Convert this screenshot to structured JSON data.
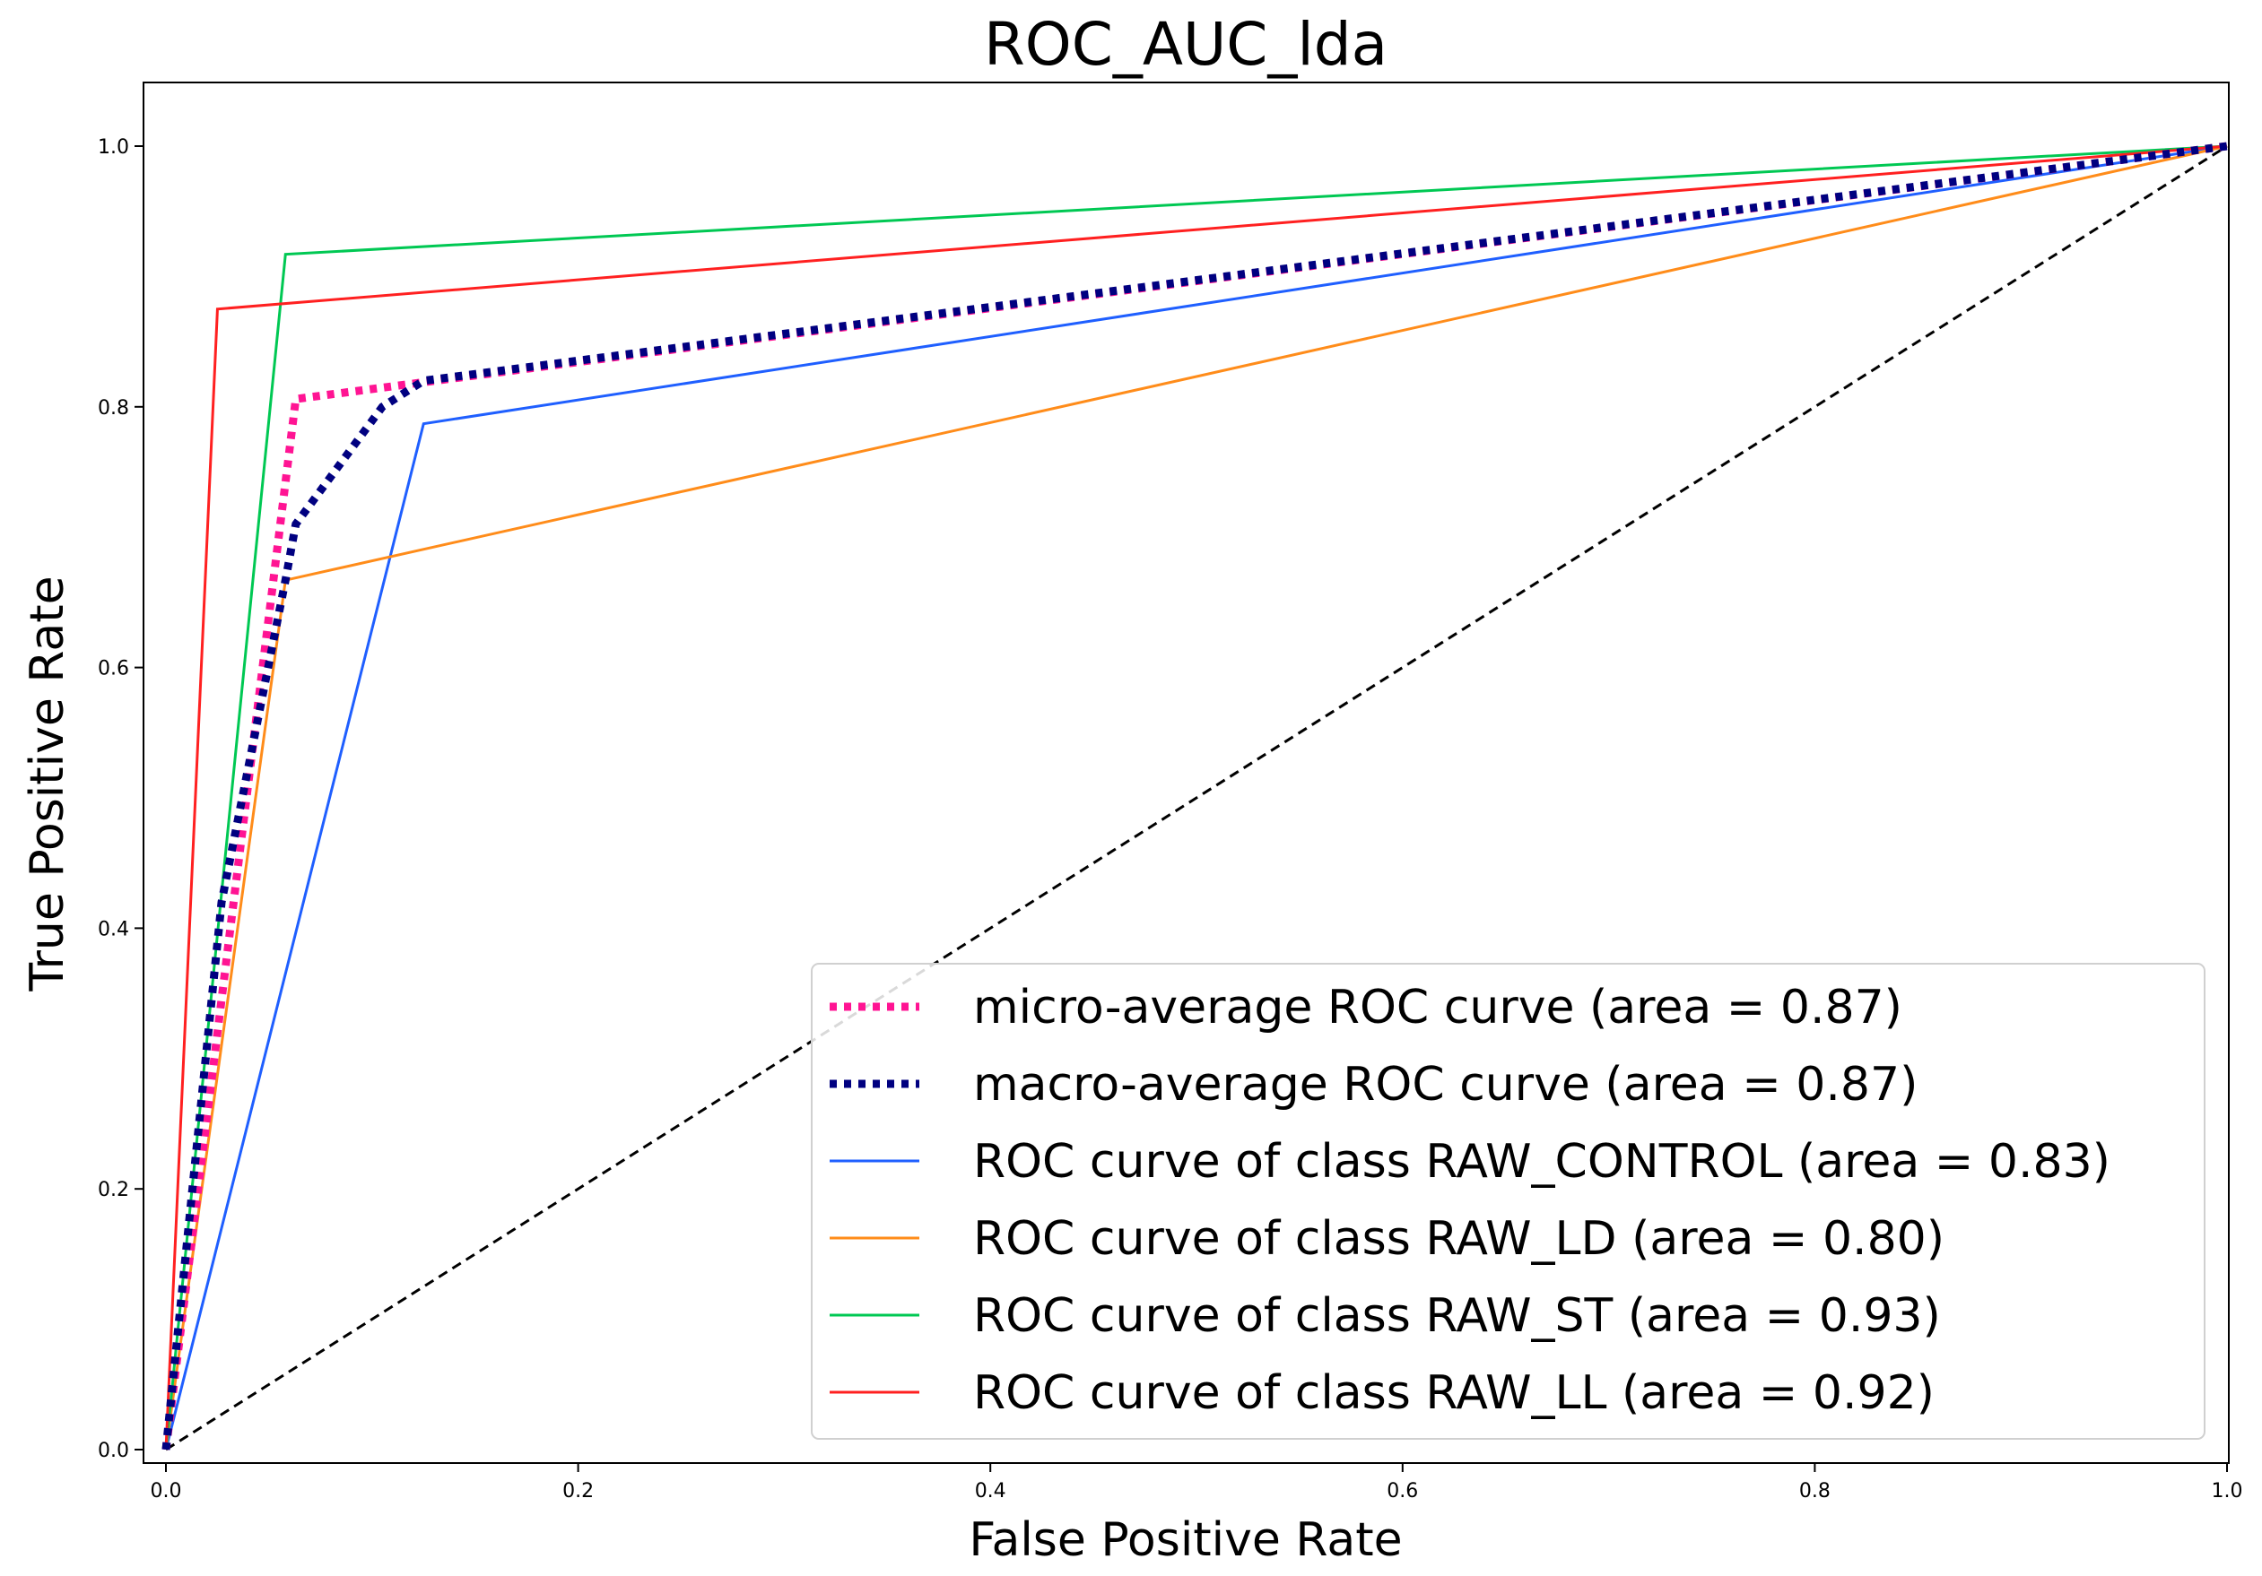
{
  "chart_data": {
    "type": "line",
    "title": "ROC_AUC_lda",
    "xlabel": "False Positive Rate",
    "ylabel": "True Positive Rate",
    "xlim": [
      0.0,
      1.0
    ],
    "ylim": [
      0.0,
      1.05
    ],
    "xticks": [
      0.0,
      0.2,
      0.4,
      0.6,
      0.8,
      1.0
    ],
    "xtick_labels": [
      "0.0",
      "0.2",
      "0.4",
      "0.6",
      "0.8",
      "1.0"
    ],
    "yticks": [
      0.0,
      0.2,
      0.4,
      0.6,
      0.8,
      1.0
    ],
    "ytick_labels": [
      "0.0",
      "0.2",
      "0.4",
      "0.6",
      "0.8",
      "1.0"
    ],
    "grid": false,
    "legend_position": "lower-right",
    "series": [
      {
        "name": "micro-average ROC curve (area = 0.87)",
        "color": "#ff1493",
        "style": "dotted",
        "x": [
          0.0,
          0.063,
          1.0
        ],
        "y": [
          0.0,
          0.806,
          1.0
        ]
      },
      {
        "name": "macro-average ROC curve (area = 0.87)",
        "color": "#000080",
        "style": "dotted",
        "x": [
          0.0,
          0.027,
          0.058,
          0.063,
          0.105,
          0.125,
          1.0
        ],
        "y": [
          0.0,
          0.42,
          0.667,
          0.71,
          0.8,
          0.82,
          1.0
        ]
      },
      {
        "name": "ROC curve of class RAW_CONTROL (area = 0.83)",
        "color": "#1f5fff",
        "style": "solid",
        "x": [
          0.0,
          0.125,
          1.0
        ],
        "y": [
          0.0,
          0.787,
          1.0
        ]
      },
      {
        "name": "ROC curve of class RAW_LD (area = 0.80)",
        "color": "#ff8c1a",
        "style": "solid",
        "x": [
          0.0,
          0.058,
          1.0
        ],
        "y": [
          0.0,
          0.667,
          1.0
        ]
      },
      {
        "name": "ROC curve of class RAW_ST (area = 0.93)",
        "color": "#00c853",
        "style": "solid",
        "x": [
          0.0,
          0.058,
          1.0
        ],
        "y": [
          0.0,
          0.917,
          1.0
        ]
      },
      {
        "name": "ROC curve of class RAW_LL (area = 0.92)",
        "color": "#ff2020",
        "style": "solid",
        "x": [
          0.0,
          0.025,
          1.0
        ],
        "y": [
          0.0,
          0.875,
          1.0
        ]
      }
    ],
    "reference_line": {
      "color": "#000000",
      "style": "dashed",
      "x": [
        0.0,
        1.0
      ],
      "y": [
        0.0,
        1.0
      ]
    }
  }
}
